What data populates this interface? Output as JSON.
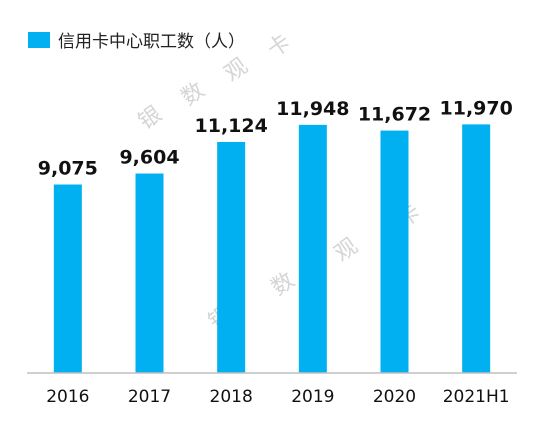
{
  "chart_data": {
    "type": "bar",
    "categories": [
      "2016",
      "2017",
      "2018",
      "2019",
      "2020",
      "2021H1"
    ],
    "series": [
      {
        "name": "信用卡中心职工数（人）",
        "values": [
          9075,
          9604,
          11124,
          11948,
          11672,
          11970
        ],
        "value_labels": [
          "9,075",
          "9,604",
          "11,124",
          "11,948",
          "11,672",
          "11,970"
        ],
        "color": "#00b0f0"
      }
    ],
    "title": "",
    "xlabel": "",
    "ylabel": "",
    "ylim": [
      0,
      13000
    ],
    "grid": false,
    "legend": "top-left",
    "axis_color": "#bfbfbf"
  },
  "watermark": {
    "chars": [
      "银",
      "数",
      "观",
      "卡"
    ]
  }
}
